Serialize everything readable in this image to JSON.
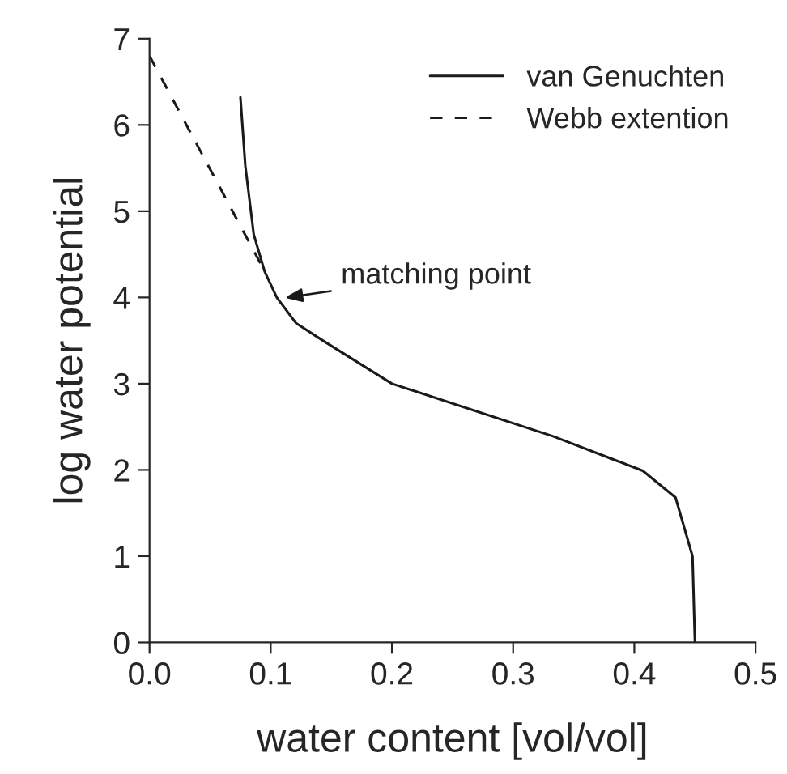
{
  "chart_data": {
    "type": "line",
    "xlabel": "water content [vol/vol]",
    "ylabel": "log water potential",
    "series": [
      {
        "name": "van Genuchten",
        "color": "#1a1a1a",
        "line_style": "solid",
        "x": [
          0.075,
          0.079,
          0.086,
          0.095,
          0.105,
          0.121,
          0.143,
          0.2,
          0.333,
          0.407,
          0.434,
          0.448,
          0.45
        ],
        "values": [
          6.32,
          5.53,
          4.73,
          4.3,
          4.0,
          3.7,
          3.5,
          3.0,
          2.39,
          1.99,
          1.68,
          1.0,
          0.0
        ]
      },
      {
        "name": "Webb extention",
        "color": "#1a1a1a",
        "line_style": "dashed",
        "x": [
          0.0,
          0.094
        ],
        "values": [
          6.8,
          4.33
        ]
      }
    ],
    "annotations": [
      {
        "text": "matching point",
        "x": 0.108,
        "y": 3.99
      }
    ],
    "xlim": [
      0,
      0.5
    ],
    "ylim": [
      0,
      7
    ],
    "xticks": [
      {
        "value": 0,
        "label": "0.0"
      },
      0.1,
      0.2,
      0.3,
      0.4,
      0.5
    ],
    "yticks": [
      0,
      1,
      2,
      3,
      4,
      5,
      6,
      7
    ],
    "grid": false,
    "legend": "top right",
    "marker": "none"
  }
}
